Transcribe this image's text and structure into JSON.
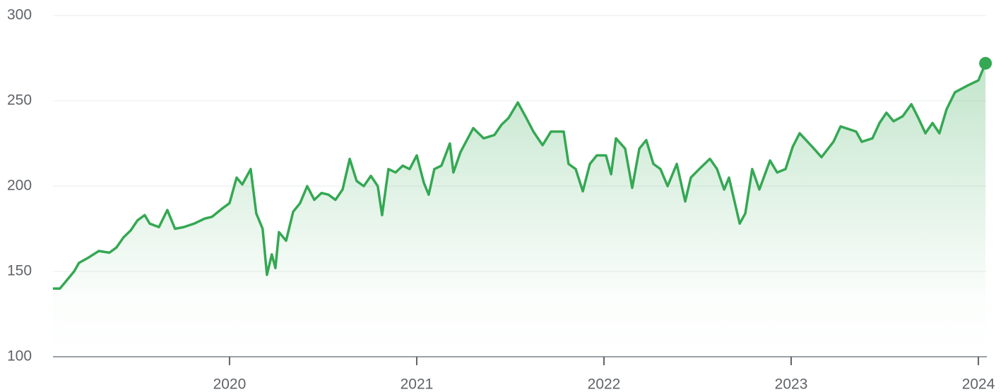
{
  "chart_data": {
    "type": "line",
    "color": "#34a853",
    "grid": true,
    "x": [
      2019.057,
      2019.094,
      2019.132,
      2019.17,
      2019.196,
      2019.245,
      2019.302,
      2019.358,
      2019.396,
      2019.434,
      2019.472,
      2019.509,
      2019.547,
      2019.574,
      2019.623,
      2019.668,
      2019.709,
      2019.755,
      2019.811,
      2019.868,
      2019.906,
      2019.962,
      2020.0,
      2020.038,
      2020.068,
      2020.113,
      2020.143,
      2020.177,
      2020.2,
      2020.226,
      2020.245,
      2020.264,
      2020.302,
      2020.34,
      2020.377,
      2020.415,
      2020.453,
      2020.491,
      2020.528,
      2020.566,
      2020.604,
      2020.642,
      2020.679,
      2020.717,
      2020.755,
      2020.792,
      2020.815,
      2020.849,
      2020.887,
      2020.925,
      2020.962,
      2021.0,
      2021.038,
      2021.064,
      2021.094,
      2021.132,
      2021.177,
      2021.196,
      2021.234,
      2021.302,
      2021.358,
      2021.415,
      2021.453,
      2021.491,
      2021.54,
      2021.585,
      2021.623,
      2021.672,
      2021.717,
      2021.785,
      2021.811,
      2021.849,
      2021.887,
      2021.925,
      2021.962,
      2022.011,
      2022.038,
      2022.064,
      2022.113,
      2022.151,
      2022.189,
      2022.226,
      2022.264,
      2022.302,
      2022.34,
      2022.389,
      2022.434,
      2022.464,
      2022.509,
      2022.566,
      2022.604,
      2022.642,
      2022.668,
      2022.725,
      2022.755,
      2022.792,
      2022.83,
      2022.887,
      2022.925,
      2022.97,
      2023.008,
      2023.045,
      2023.113,
      2023.162,
      2023.226,
      2023.264,
      2023.347,
      2023.377,
      2023.434,
      2023.472,
      2023.509,
      2023.547,
      2023.596,
      2023.642,
      2023.679,
      2023.717,
      2023.755,
      2023.792,
      2023.83,
      2023.875,
      2023.943,
      2024.0,
      2024.038
    ],
    "values": [
      140,
      140,
      145,
      150,
      155,
      158,
      162,
      161,
      164,
      170,
      174,
      180,
      183,
      178,
      176,
      186,
      175,
      176,
      178,
      181,
      182,
      187,
      190,
      205,
      201,
      210,
      184,
      175,
      148,
      160,
      152,
      173,
      168,
      185,
      190,
      200,
      192,
      196,
      195,
      192,
      198,
      216,
      203,
      200,
      206,
      200,
      183,
      210,
      208,
      212,
      210,
      218,
      202,
      195,
      210,
      212,
      225,
      208,
      220,
      234,
      228,
      230,
      236,
      240,
      249,
      240,
      232,
      224,
      232,
      232,
      213,
      210,
      197,
      213,
      218,
      218,
      207,
      228,
      222,
      199,
      222,
      227,
      213,
      210,
      200,
      213,
      191,
      205,
      210,
      216,
      210,
      198,
      205,
      178,
      184,
      210,
      198,
      215,
      208,
      210,
      223,
      231,
      223,
      217,
      226,
      235,
      232,
      226,
      228,
      237,
      243,
      238,
      241,
      248,
      240,
      231,
      237,
      231,
      245,
      255,
      259,
      262,
      272
    ],
    "xlim": [
      2019.057,
      2024.045
    ],
    "xticks": [
      2020,
      2021,
      2022,
      2023,
      2024
    ],
    "ylim": [
      100,
      300
    ],
    "yticks": [
      100,
      150,
      200,
      250,
      300
    ]
  }
}
